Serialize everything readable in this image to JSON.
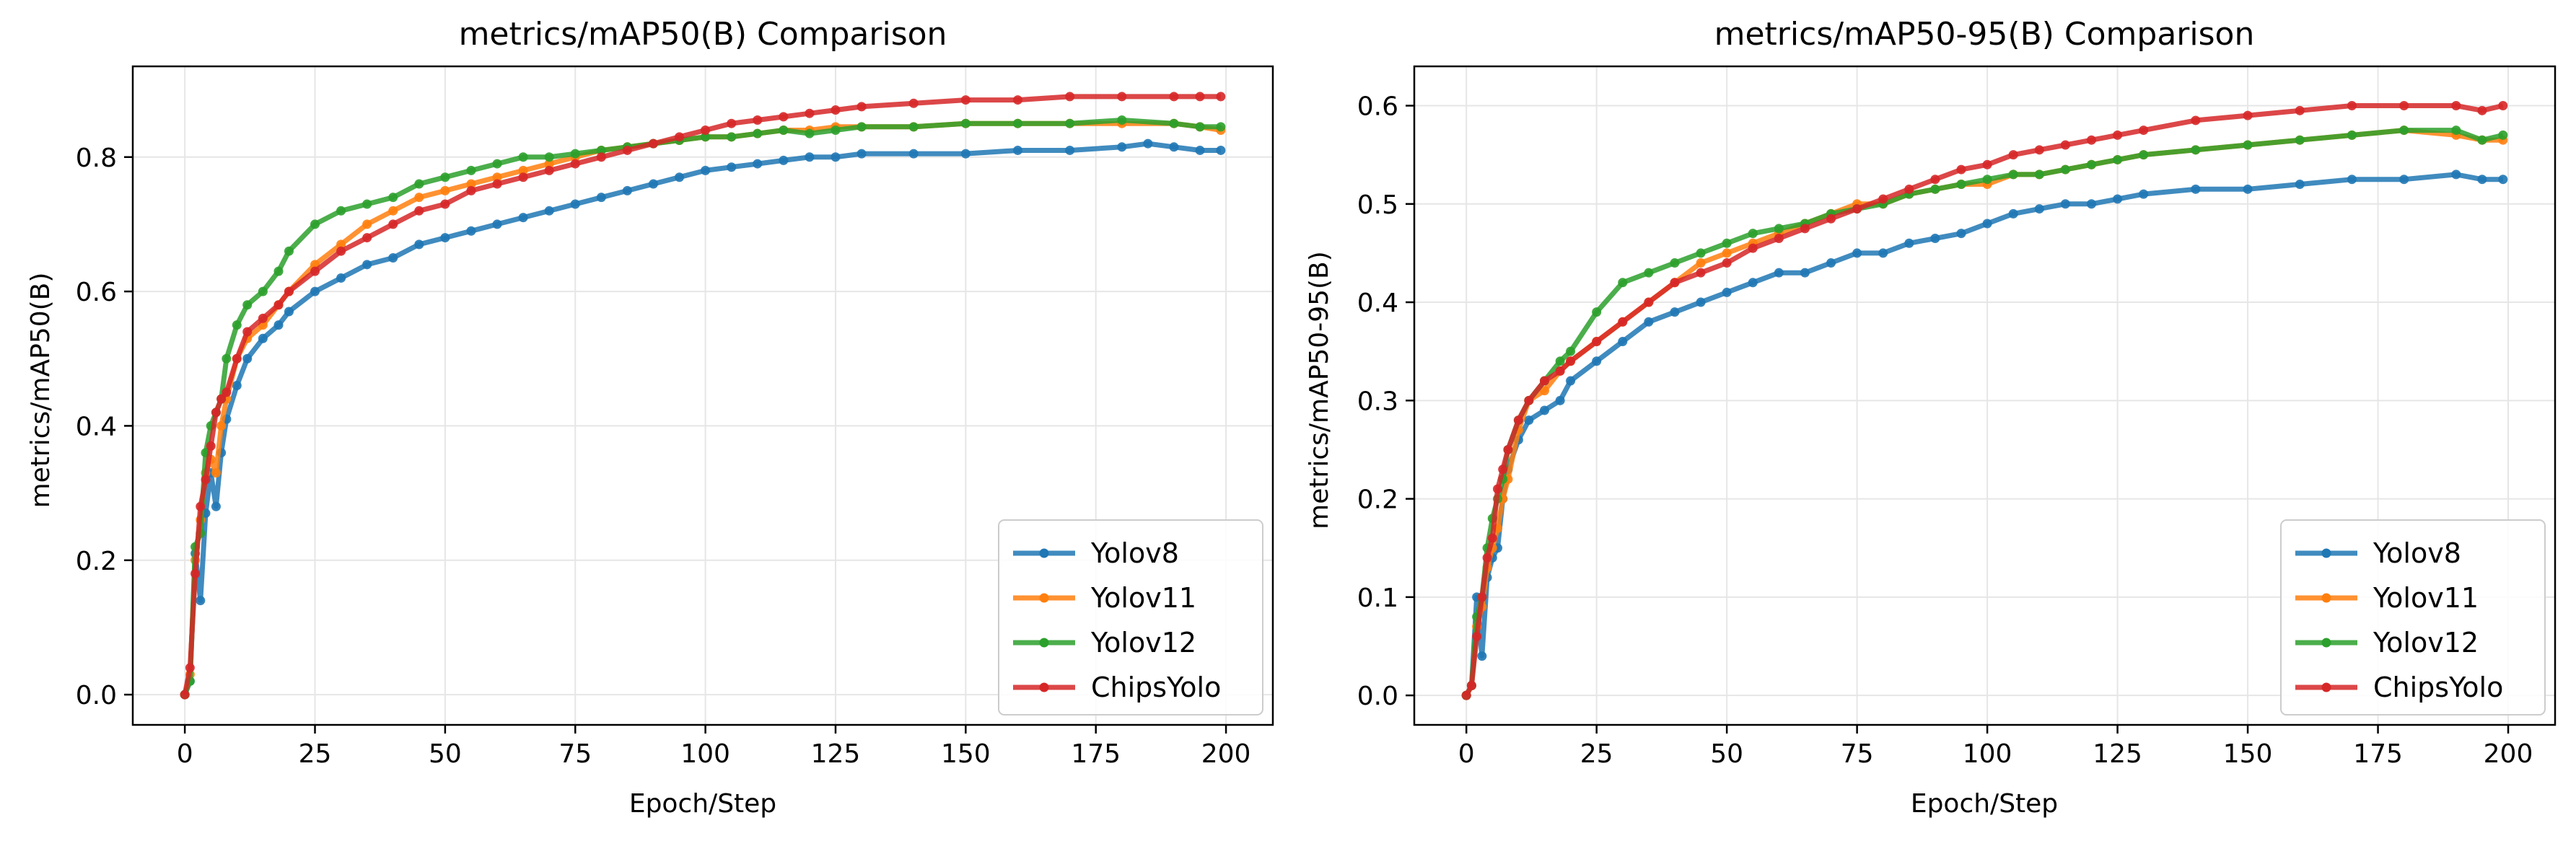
{
  "figure": {
    "background": "#ffffff"
  },
  "chart_data": [
    {
      "type": "line",
      "title": "metrics/mAP50(B) Comparison",
      "xlabel": "Epoch/Step",
      "ylabel": "metrics/mAP50(B)",
      "xlim": [
        -10,
        209
      ],
      "ylim": [
        -0.045,
        0.935
      ],
      "xticks": [
        0,
        25,
        50,
        75,
        100,
        125,
        150,
        175,
        200
      ],
      "yticks": [
        0.0,
        0.2,
        0.4,
        0.6,
        0.8
      ],
      "ytick_labels": [
        "0.0",
        "0.2",
        "0.4",
        "0.6",
        "0.8"
      ],
      "grid": true,
      "legend_position": "lower right",
      "series": [
        {
          "name": "Yolov8",
          "color": "#1f77b4",
          "x": [
            0,
            1,
            2,
            3,
            4,
            5,
            6,
            7,
            8,
            10,
            12,
            15,
            18,
            20,
            25,
            30,
            35,
            40,
            45,
            50,
            55,
            60,
            65,
            70,
            75,
            80,
            85,
            90,
            95,
            100,
            105,
            110,
            115,
            120,
            125,
            130,
            140,
            150,
            160,
            170,
            180,
            185,
            190,
            195,
            199
          ],
          "y": [
            0.0,
            0.02,
            0.21,
            0.14,
            0.27,
            0.33,
            0.28,
            0.36,
            0.41,
            0.46,
            0.5,
            0.53,
            0.55,
            0.57,
            0.6,
            0.62,
            0.64,
            0.65,
            0.67,
            0.68,
            0.69,
            0.7,
            0.71,
            0.72,
            0.73,
            0.74,
            0.75,
            0.76,
            0.77,
            0.78,
            0.785,
            0.79,
            0.795,
            0.8,
            0.8,
            0.805,
            0.805,
            0.805,
            0.81,
            0.81,
            0.815,
            0.82,
            0.815,
            0.81,
            0.81
          ]
        },
        {
          "name": "Yolov11",
          "color": "#ff7f0e",
          "x": [
            0,
            1,
            2,
            3,
            4,
            5,
            6,
            7,
            8,
            10,
            12,
            15,
            18,
            20,
            25,
            30,
            35,
            40,
            45,
            50,
            55,
            60,
            65,
            70,
            75,
            80,
            85,
            90,
            95,
            100,
            105,
            110,
            115,
            120,
            125,
            130,
            140,
            150,
            160,
            170,
            180,
            190,
            195,
            199
          ],
          "y": [
            0.0,
            0.03,
            0.2,
            0.26,
            0.33,
            0.35,
            0.33,
            0.4,
            0.44,
            0.5,
            0.53,
            0.55,
            0.58,
            0.6,
            0.64,
            0.67,
            0.7,
            0.72,
            0.74,
            0.75,
            0.76,
            0.77,
            0.78,
            0.79,
            0.8,
            0.81,
            0.815,
            0.82,
            0.825,
            0.83,
            0.83,
            0.835,
            0.84,
            0.84,
            0.845,
            0.845,
            0.845,
            0.85,
            0.85,
            0.85,
            0.85,
            0.85,
            0.845,
            0.84
          ]
        },
        {
          "name": "Yolov12",
          "color": "#2ca02c",
          "x": [
            0,
            1,
            2,
            3,
            4,
            5,
            6,
            7,
            8,
            10,
            12,
            15,
            18,
            20,
            25,
            30,
            35,
            40,
            45,
            50,
            55,
            60,
            65,
            70,
            75,
            80,
            85,
            90,
            95,
            100,
            105,
            110,
            115,
            120,
            125,
            130,
            140,
            150,
            160,
            170,
            180,
            190,
            195,
            199
          ],
          "y": [
            0.0,
            0.02,
            0.22,
            0.24,
            0.36,
            0.4,
            0.42,
            0.44,
            0.5,
            0.55,
            0.58,
            0.6,
            0.63,
            0.66,
            0.7,
            0.72,
            0.73,
            0.74,
            0.76,
            0.77,
            0.78,
            0.79,
            0.8,
            0.8,
            0.805,
            0.81,
            0.815,
            0.82,
            0.825,
            0.83,
            0.83,
            0.835,
            0.84,
            0.835,
            0.84,
            0.845,
            0.845,
            0.85,
            0.85,
            0.85,
            0.855,
            0.85,
            0.845,
            0.845
          ]
        },
        {
          "name": "ChipsYolo",
          "color": "#d62728",
          "x": [
            0,
            1,
            2,
            3,
            4,
            5,
            6,
            7,
            8,
            10,
            12,
            15,
            18,
            20,
            25,
            30,
            35,
            40,
            45,
            50,
            55,
            60,
            65,
            70,
            75,
            80,
            85,
            90,
            95,
            100,
            105,
            110,
            115,
            120,
            125,
            130,
            140,
            150,
            160,
            170,
            180,
            190,
            195,
            199
          ],
          "y": [
            0.0,
            0.04,
            0.18,
            0.28,
            0.32,
            0.37,
            0.42,
            0.44,
            0.45,
            0.5,
            0.54,
            0.56,
            0.58,
            0.6,
            0.63,
            0.66,
            0.68,
            0.7,
            0.72,
            0.73,
            0.75,
            0.76,
            0.77,
            0.78,
            0.79,
            0.8,
            0.81,
            0.82,
            0.83,
            0.84,
            0.85,
            0.855,
            0.86,
            0.865,
            0.87,
            0.875,
            0.88,
            0.885,
            0.885,
            0.89,
            0.89,
            0.89,
            0.89,
            0.89
          ]
        }
      ]
    },
    {
      "type": "line",
      "title": "metrics/mAP50-95(B) Comparison",
      "xlabel": "Epoch/Step",
      "ylabel": "metrics/mAP50-95(B)",
      "xlim": [
        -10,
        209
      ],
      "ylim": [
        -0.03,
        0.64
      ],
      "xticks": [
        0,
        25,
        50,
        75,
        100,
        125,
        150,
        175,
        200
      ],
      "yticks": [
        0.0,
        0.1,
        0.2,
        0.3,
        0.4,
        0.5,
        0.6
      ],
      "ytick_labels": [
        "0.0",
        "0.1",
        "0.2",
        "0.3",
        "0.4",
        "0.5",
        "0.6"
      ],
      "grid": true,
      "legend_position": "lower right",
      "series": [
        {
          "name": "Yolov8",
          "color": "#1f77b4",
          "x": [
            0,
            1,
            2,
            3,
            4,
            5,
            6,
            7,
            8,
            10,
            12,
            15,
            18,
            20,
            25,
            30,
            35,
            40,
            45,
            50,
            55,
            60,
            65,
            70,
            75,
            80,
            85,
            90,
            95,
            100,
            105,
            110,
            115,
            120,
            125,
            130,
            140,
            150,
            160,
            170,
            180,
            190,
            195,
            199
          ],
          "y": [
            0.0,
            0.01,
            0.1,
            0.04,
            0.12,
            0.14,
            0.15,
            0.2,
            0.23,
            0.26,
            0.28,
            0.29,
            0.3,
            0.32,
            0.34,
            0.36,
            0.38,
            0.39,
            0.4,
            0.41,
            0.42,
            0.43,
            0.43,
            0.44,
            0.45,
            0.45,
            0.46,
            0.465,
            0.47,
            0.48,
            0.49,
            0.495,
            0.5,
            0.5,
            0.505,
            0.51,
            0.515,
            0.515,
            0.52,
            0.525,
            0.525,
            0.53,
            0.525,
            0.525
          ]
        },
        {
          "name": "Yolov11",
          "color": "#ff7f0e",
          "x": [
            0,
            1,
            2,
            3,
            4,
            5,
            6,
            7,
            8,
            10,
            12,
            15,
            18,
            20,
            25,
            30,
            35,
            40,
            45,
            50,
            55,
            60,
            65,
            70,
            75,
            80,
            85,
            90,
            95,
            100,
            105,
            110,
            115,
            120,
            125,
            130,
            140,
            150,
            160,
            170,
            180,
            190,
            195,
            199
          ],
          "y": [
            0.0,
            0.01,
            0.07,
            0.09,
            0.13,
            0.15,
            0.17,
            0.2,
            0.22,
            0.27,
            0.3,
            0.31,
            0.33,
            0.34,
            0.36,
            0.38,
            0.4,
            0.42,
            0.44,
            0.45,
            0.46,
            0.47,
            0.48,
            0.49,
            0.5,
            0.5,
            0.51,
            0.515,
            0.52,
            0.52,
            0.53,
            0.53,
            0.535,
            0.54,
            0.545,
            0.55,
            0.555,
            0.56,
            0.565,
            0.57,
            0.575,
            0.57,
            0.565,
            0.565
          ]
        },
        {
          "name": "Yolov12",
          "color": "#2ca02c",
          "x": [
            0,
            1,
            2,
            3,
            4,
            5,
            6,
            7,
            8,
            10,
            12,
            15,
            18,
            20,
            25,
            30,
            35,
            40,
            45,
            50,
            55,
            60,
            65,
            70,
            75,
            80,
            85,
            90,
            95,
            100,
            105,
            110,
            115,
            120,
            125,
            130,
            140,
            150,
            160,
            170,
            180,
            190,
            195,
            199
          ],
          "y": [
            0.0,
            0.01,
            0.08,
            0.1,
            0.15,
            0.18,
            0.2,
            0.22,
            0.25,
            0.28,
            0.3,
            0.32,
            0.34,
            0.35,
            0.39,
            0.42,
            0.43,
            0.44,
            0.45,
            0.46,
            0.47,
            0.475,
            0.48,
            0.49,
            0.495,
            0.5,
            0.51,
            0.515,
            0.52,
            0.525,
            0.53,
            0.53,
            0.535,
            0.54,
            0.545,
            0.55,
            0.555,
            0.56,
            0.565,
            0.57,
            0.575,
            0.575,
            0.565,
            0.57
          ]
        },
        {
          "name": "ChipsYolo",
          "color": "#d62728",
          "x": [
            0,
            1,
            2,
            3,
            4,
            5,
            6,
            7,
            8,
            10,
            12,
            15,
            18,
            20,
            25,
            30,
            35,
            40,
            45,
            50,
            55,
            60,
            65,
            70,
            75,
            80,
            85,
            90,
            95,
            100,
            105,
            110,
            115,
            120,
            125,
            130,
            140,
            150,
            160,
            170,
            180,
            190,
            195,
            199
          ],
          "y": [
            0.0,
            0.01,
            0.06,
            0.1,
            0.14,
            0.16,
            0.21,
            0.23,
            0.25,
            0.28,
            0.3,
            0.32,
            0.33,
            0.34,
            0.36,
            0.38,
            0.4,
            0.42,
            0.43,
            0.44,
            0.455,
            0.465,
            0.475,
            0.485,
            0.495,
            0.505,
            0.515,
            0.525,
            0.535,
            0.54,
            0.55,
            0.555,
            0.56,
            0.565,
            0.57,
            0.575,
            0.585,
            0.59,
            0.595,
            0.6,
            0.6,
            0.6,
            0.595,
            0.6
          ]
        }
      ]
    }
  ]
}
